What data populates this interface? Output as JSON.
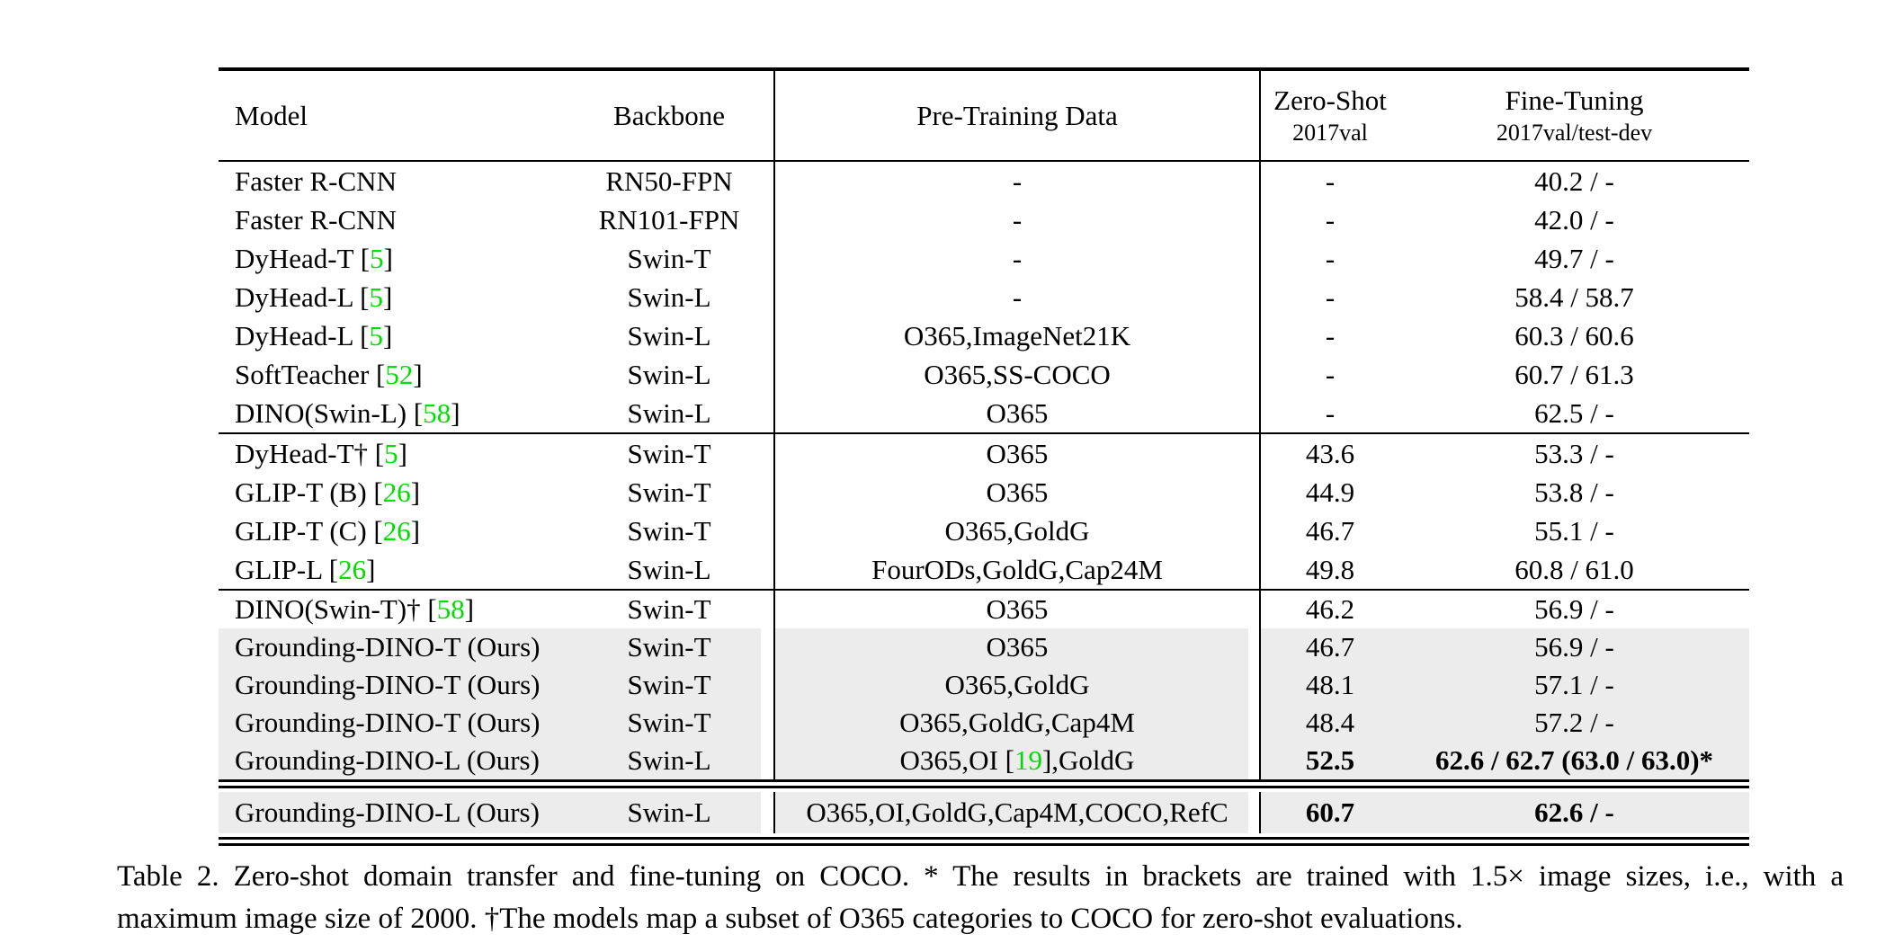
{
  "colors": {
    "citation_green": "#00dd00",
    "row_highlight_gray": "#ececec",
    "rule_black": "#000000"
  },
  "table": {
    "header": {
      "model": "Model",
      "backbone": "Backbone",
      "pretraining": "Pre-Training Data",
      "zero_shot_title": "Zero-Shot",
      "zero_shot_sub": "2017val",
      "fine_tuning_title": "Fine-Tuning",
      "fine_tuning_sub": "2017val/test-dev"
    },
    "sections": [
      {
        "rows": [
          {
            "model": "Faster R-CNN",
            "backbone": "RN50-FPN",
            "pretrain": "-",
            "zero_shot": "-",
            "fine_tuning": "40.2 / -",
            "highlight": false,
            "bold": false
          },
          {
            "model": "Faster R-CNN",
            "backbone": "RN101-FPN",
            "pretrain": "-",
            "zero_shot": "-",
            "fine_tuning": "42.0 / -",
            "highlight": false,
            "bold": false
          },
          {
            "model": "DyHead-T [5]",
            "backbone": "Swin-T",
            "pretrain": "-",
            "zero_shot": "-",
            "fine_tuning": "49.7 / -",
            "highlight": false,
            "bold": false
          },
          {
            "model": "DyHead-L [5]",
            "backbone": "Swin-L",
            "pretrain": "-",
            "zero_shot": "-",
            "fine_tuning": "58.4 / 58.7",
            "highlight": false,
            "bold": false
          },
          {
            "model": "DyHead-L [5]",
            "backbone": "Swin-L",
            "pretrain": "O365,ImageNet21K",
            "zero_shot": "-",
            "fine_tuning": "60.3 / 60.6",
            "highlight": false,
            "bold": false
          },
          {
            "model": "SoftTeacher [52]",
            "backbone": "Swin-L",
            "pretrain": "O365,SS-COCO",
            "zero_shot": "-",
            "fine_tuning": "60.7 / 61.3",
            "highlight": false,
            "bold": false
          },
          {
            "model": "DINO(Swin-L) [58]",
            "backbone": "Swin-L",
            "pretrain": "O365",
            "zero_shot": "-",
            "fine_tuning": "62.5 / -",
            "highlight": false,
            "bold": false
          }
        ]
      },
      {
        "rows": [
          {
            "model": "DyHead-T† [5]",
            "backbone": "Swin-T",
            "pretrain": "O365",
            "zero_shot": "43.6",
            "fine_tuning": "53.3 / -",
            "highlight": false,
            "bold": false
          },
          {
            "model": "GLIP-T (B) [26]",
            "backbone": "Swin-T",
            "pretrain": "O365",
            "zero_shot": "44.9",
            "fine_tuning": "53.8 / -",
            "highlight": false,
            "bold": false
          },
          {
            "model": "GLIP-T (C) [26]",
            "backbone": "Swin-T",
            "pretrain": "O365,GoldG",
            "zero_shot": "46.7",
            "fine_tuning": "55.1 / -",
            "highlight": false,
            "bold": false
          },
          {
            "model": "GLIP-L [26]",
            "backbone": "Swin-L",
            "pretrain": "FourODs,GoldG,Cap24M",
            "zero_shot": "49.8",
            "fine_tuning": "60.8 / 61.0",
            "highlight": false,
            "bold": false
          }
        ]
      },
      {
        "rows": [
          {
            "model": "DINO(Swin-T)† [58]",
            "backbone": "Swin-T",
            "pretrain": "O365",
            "zero_shot": "46.2",
            "fine_tuning": "56.9 / -",
            "highlight": false,
            "bold": false
          },
          {
            "model": "Grounding-DINO-T (Ours)",
            "backbone": "Swin-T",
            "pretrain": "O365",
            "zero_shot": "46.7",
            "fine_tuning": "56.9 / -",
            "highlight": true,
            "bold": false
          },
          {
            "model": "Grounding-DINO-T (Ours)",
            "backbone": "Swin-T",
            "pretrain": "O365,GoldG",
            "zero_shot": "48.1",
            "fine_tuning": "57.1 / -",
            "highlight": true,
            "bold": false
          },
          {
            "model": "Grounding-DINO-T (Ours)",
            "backbone": "Swin-T",
            "pretrain": "O365,GoldG,Cap4M",
            "zero_shot": "48.4",
            "fine_tuning": "57.2 / -",
            "highlight": true,
            "bold": false
          },
          {
            "model": "Grounding-DINO-L (Ours)",
            "backbone": "Swin-L",
            "pretrain": "O365,OI [19],GoldG",
            "zero_shot": "52.5",
            "fine_tuning": "62.6 / 62.7 (63.0 / 63.0)*",
            "highlight": true,
            "bold": true
          }
        ]
      },
      {
        "rows": [
          {
            "model": "Grounding-DINO-L (Ours)",
            "backbone": "Swin-L",
            "pretrain": "O365,OI,GoldG,Cap4M,COCO,RefC",
            "zero_shot": "60.7",
            "fine_tuning": "62.6 / -",
            "highlight": true,
            "bold": true
          }
        ]
      }
    ]
  },
  "caption": {
    "line1": "Table 2.  Zero-shot domain transfer and fine-tuning on COCO. * The results in brackets are trained with 1.5× image sizes, i.e., with a",
    "line2": "maximum image size of 2000. †The models map a subset of O365 categories to COCO for zero-shot evaluations."
  }
}
